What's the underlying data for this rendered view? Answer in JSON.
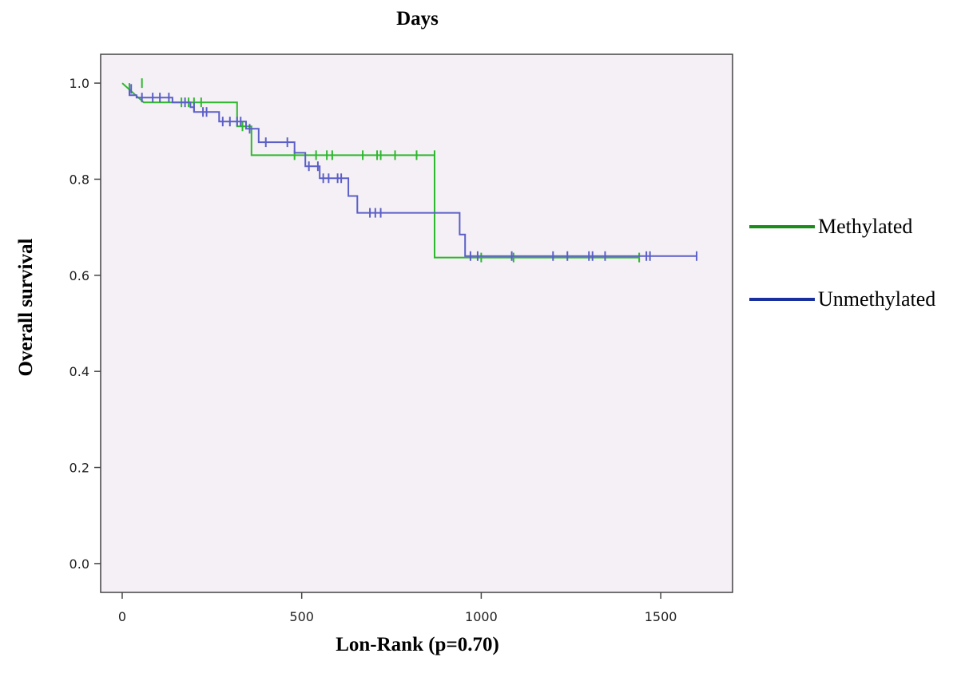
{
  "chart_data": {
    "type": "line",
    "title": "Days",
    "xlabel": "Lon-Rank (p=0.70)",
    "ylabel": "Overall survival",
    "xlim": [
      -60,
      1700
    ],
    "ylim": [
      -0.06,
      1.06
    ],
    "xticks": [
      0,
      500,
      1000,
      1500
    ],
    "yticks": [
      0.0,
      0.2,
      0.4,
      0.6,
      0.8,
      1.0
    ],
    "ytick_labels": [
      "0.0",
      "0.2",
      "0.4",
      "0.6",
      "0.8",
      "1.0"
    ],
    "background_color": "#f5f0f5",
    "legend_position": "right",
    "series": [
      {
        "name": "Methylated",
        "color": "#2eb82e",
        "legend_color": "#1a8c1a",
        "steps": [
          [
            0,
            1.0
          ],
          [
            60,
            0.96
          ],
          [
            200,
            0.96
          ],
          [
            320,
            0.96
          ],
          [
            320,
            0.91
          ],
          [
            360,
            0.91
          ],
          [
            360,
            0.85
          ],
          [
            870,
            0.85
          ],
          [
            870,
            0.637
          ],
          [
            1440,
            0.637
          ]
        ],
        "censors": [
          [
            20,
            0.99
          ],
          [
            55,
            1.0
          ],
          [
            165,
            0.96
          ],
          [
            185,
            0.96
          ],
          [
            200,
            0.96
          ],
          [
            220,
            0.96
          ],
          [
            335,
            0.91
          ],
          [
            480,
            0.85
          ],
          [
            540,
            0.85
          ],
          [
            570,
            0.85
          ],
          [
            585,
            0.85
          ],
          [
            670,
            0.85
          ],
          [
            710,
            0.85
          ],
          [
            720,
            0.85
          ],
          [
            760,
            0.85
          ],
          [
            820,
            0.85
          ],
          [
            870,
            0.85
          ],
          [
            1000,
            0.637
          ],
          [
            1090,
            0.637
          ],
          [
            1440,
            0.637
          ]
        ]
      },
      {
        "name": "Unmethylated",
        "color": "#5b5fc7",
        "legend_color": "#1a2f9e",
        "steps": [
          [
            20,
            0.988
          ],
          [
            20,
            0.975
          ],
          [
            40,
            0.975
          ],
          [
            40,
            0.97
          ],
          [
            140,
            0.97
          ],
          [
            140,
            0.96
          ],
          [
            190,
            0.96
          ],
          [
            190,
            0.95
          ],
          [
            200,
            0.95
          ],
          [
            200,
            0.94
          ],
          [
            270,
            0.94
          ],
          [
            270,
            0.92
          ],
          [
            345,
            0.92
          ],
          [
            345,
            0.905
          ],
          [
            380,
            0.905
          ],
          [
            380,
            0.877
          ],
          [
            480,
            0.877
          ],
          [
            480,
            0.855
          ],
          [
            510,
            0.855
          ],
          [
            510,
            0.827
          ],
          [
            550,
            0.827
          ],
          [
            550,
            0.802
          ],
          [
            630,
            0.802
          ],
          [
            630,
            0.765
          ],
          [
            655,
            0.765
          ],
          [
            655,
            0.73
          ],
          [
            940,
            0.73
          ],
          [
            940,
            0.685
          ],
          [
            955,
            0.685
          ],
          [
            955,
            0.64
          ],
          [
            1600,
            0.64
          ]
        ],
        "censors": [
          [
            25,
            0.988
          ],
          [
            55,
            0.97
          ],
          [
            85,
            0.97
          ],
          [
            105,
            0.97
          ],
          [
            130,
            0.97
          ],
          [
            175,
            0.96
          ],
          [
            200,
            0.95
          ],
          [
            225,
            0.94
          ],
          [
            235,
            0.94
          ],
          [
            280,
            0.92
          ],
          [
            300,
            0.92
          ],
          [
            320,
            0.92
          ],
          [
            330,
            0.92
          ],
          [
            355,
            0.905
          ],
          [
            400,
            0.877
          ],
          [
            460,
            0.877
          ],
          [
            520,
            0.827
          ],
          [
            545,
            0.827
          ],
          [
            560,
            0.802
          ],
          [
            575,
            0.802
          ],
          [
            600,
            0.802
          ],
          [
            610,
            0.802
          ],
          [
            690,
            0.73
          ],
          [
            705,
            0.73
          ],
          [
            720,
            0.73
          ],
          [
            970,
            0.64
          ],
          [
            990,
            0.64
          ],
          [
            1085,
            0.64
          ],
          [
            1200,
            0.64
          ],
          [
            1240,
            0.64
          ],
          [
            1300,
            0.64
          ],
          [
            1310,
            0.64
          ],
          [
            1345,
            0.64
          ],
          [
            1460,
            0.64
          ],
          [
            1470,
            0.64
          ],
          [
            1600,
            0.64
          ]
        ]
      }
    ]
  }
}
